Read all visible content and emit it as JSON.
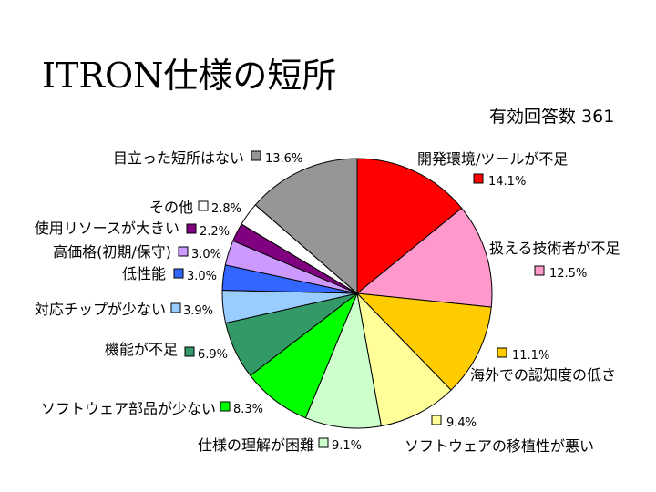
{
  "chart_data": {
    "type": "pie",
    "title": "ITRON仕様の短所",
    "subtitle": "有効回答数 361",
    "slices": [
      {
        "label": "開発環境/ツールが不足",
        "value": 14.1,
        "value_label": "14.1%",
        "color": "#ff0000"
      },
      {
        "label": "扱える技術者が不足",
        "value": 12.5,
        "value_label": "12.5%",
        "color": "#ff99cc"
      },
      {
        "label": "海外での認知度の低さ",
        "value": 11.1,
        "value_label": "11.1%",
        "color": "#ffcc00"
      },
      {
        "label": "ソフトウェアの移植性が悪い",
        "value": 9.4,
        "value_label": "9.4%",
        "color": "#ffff99"
      },
      {
        "label": "仕様の理解が困難",
        "value": 9.1,
        "value_label": "9.1%",
        "color": "#ccffcc"
      },
      {
        "label": "ソフトウェア部品が少ない",
        "value": 8.3,
        "value_label": "8.3%",
        "color": "#00ff00"
      },
      {
        "label": "機能が不足",
        "value": 6.9,
        "value_label": "6.9%",
        "color": "#339966"
      },
      {
        "label": "対応チップが少ない",
        "value": 3.9,
        "value_label": "3.9%",
        "color": "#99ccff"
      },
      {
        "label": "低性能",
        "value": 3.0,
        "value_label": "3.0%",
        "color": "#3366ff"
      },
      {
        "label": "高価格(初期/保守)",
        "value": 3.0,
        "value_label": "3.0%",
        "color": "#cc99ff"
      },
      {
        "label": "使用リソースが大きい",
        "value": 2.2,
        "value_label": "2.2%",
        "color": "#800080"
      },
      {
        "label": "その他",
        "value": 2.8,
        "value_label": "2.8%",
        "color": "#ffffff"
      },
      {
        "label": "目立った短所はない",
        "value": 13.6,
        "value_label": "13.6%",
        "color": "#969696"
      }
    ]
  }
}
